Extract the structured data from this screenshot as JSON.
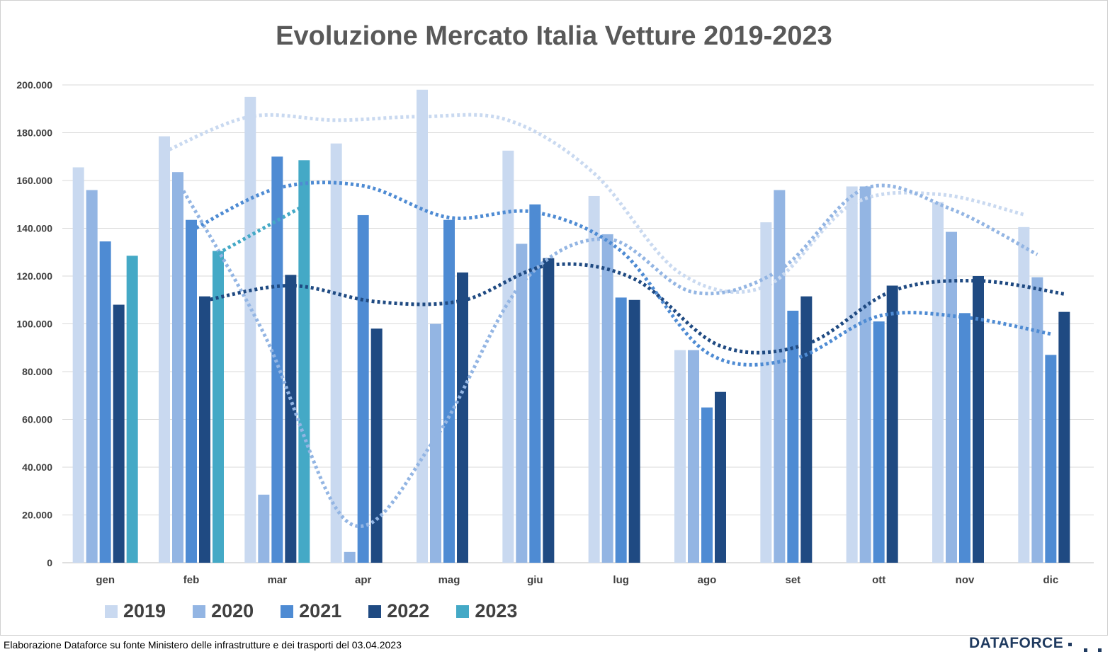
{
  "chart_data": {
    "type": "bar",
    "title": "Evoluzione Mercato Italia Vetture 2019-2023",
    "xlabel": "",
    "ylabel": "",
    "ylim": [
      0,
      200000
    ],
    "yticks": [
      0,
      20000,
      40000,
      60000,
      80000,
      100000,
      120000,
      140000,
      160000,
      180000,
      200000
    ],
    "ytick_labels": [
      "0",
      "20.000",
      "40.000",
      "60.000",
      "80.000",
      "100.000",
      "120.000",
      "140.000",
      "160.000",
      "180.000",
      "200.000"
    ],
    "grid": true,
    "legend_position": "bottom-left",
    "categories": [
      "gen",
      "feb",
      "mar",
      "apr",
      "mag",
      "giu",
      "lug",
      "ago",
      "set",
      "ott",
      "nov",
      "dic"
    ],
    "series": [
      {
        "name": "2019",
        "color": "#c9d9f0",
        "values": [
          165500,
          178500,
          195000,
          175500,
          198000,
          172500,
          153500,
          89000,
          142500,
          157500,
          151000,
          140500
        ]
      },
      {
        "name": "2020",
        "color": "#93b5e3",
        "values": [
          156000,
          163500,
          28500,
          4500,
          100000,
          133500,
          137500,
          89000,
          156000,
          157500,
          138500,
          119500
        ]
      },
      {
        "name": "2021",
        "color": "#4e8bd3",
        "values": [
          134500,
          143500,
          170000,
          145500,
          143500,
          150000,
          111000,
          65000,
          105500,
          101000,
          104500,
          87000
        ]
      },
      {
        "name": "2022",
        "color": "#1f4a82",
        "values": [
          108000,
          111500,
          120500,
          98000,
          121500,
          127500,
          110000,
          71500,
          111500,
          116000,
          120000,
          105000
        ]
      },
      {
        "name": "2023",
        "color": "#44a9c6",
        "values": [
          128500,
          130500,
          168500,
          null,
          null,
          null,
          null,
          null,
          null,
          null,
          null,
          null
        ]
      }
    ]
  },
  "legend": {
    "items": [
      {
        "label": "2019",
        "color": "#c9d9f0"
      },
      {
        "label": "2020",
        "color": "#93b5e3"
      },
      {
        "label": "2021",
        "color": "#4e8bd3"
      },
      {
        "label": "2022",
        "color": "#1f4a82"
      },
      {
        "label": "2023",
        "color": "#44a9c6"
      }
    ]
  },
  "footer": {
    "source": "Elaborazione Dataforce su fonte Ministero delle infrastrutture e dei trasporti del 03.04.2023",
    "brand": "DATAFORCE"
  }
}
